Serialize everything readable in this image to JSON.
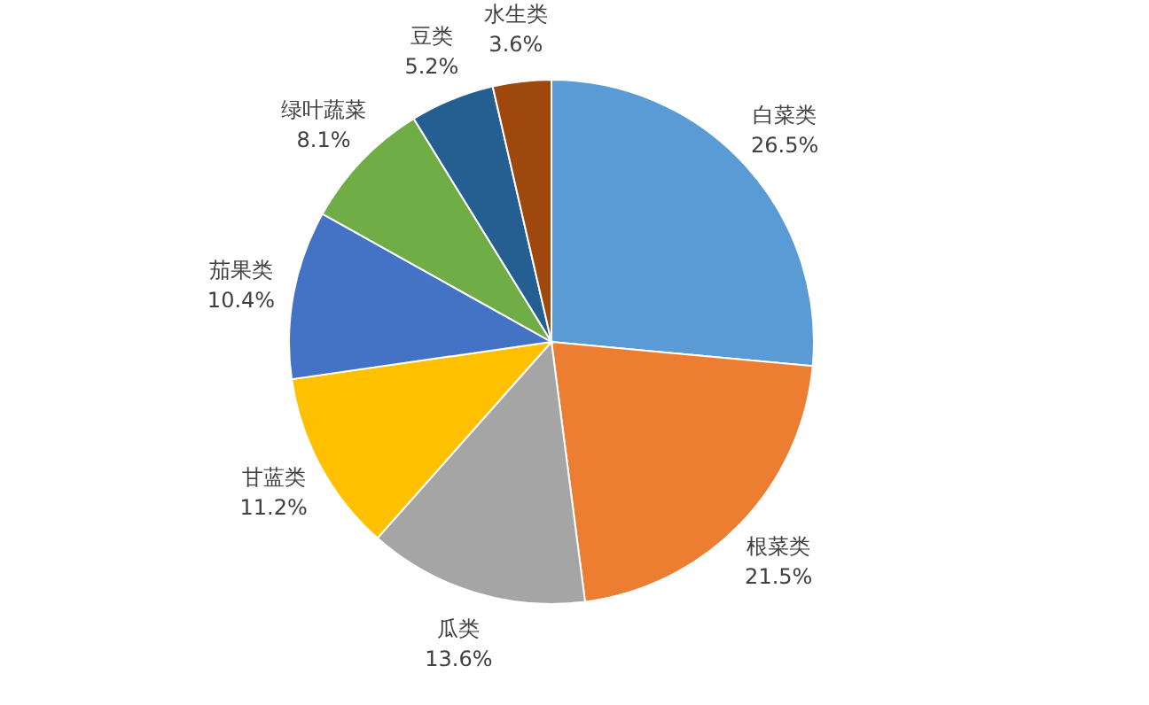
{
  "chart_data": {
    "type": "pie",
    "categories": [
      "白菜类",
      "根菜类",
      "瓜类",
      "甘蓝类",
      "茄果类",
      "绿叶蔬菜",
      "豆类",
      "水生类"
    ],
    "values": [
      26.5,
      21.5,
      13.6,
      11.2,
      10.4,
      8.1,
      5.2,
      3.6
    ],
    "value_labels": [
      "26.5%",
      "21.5%",
      "13.6%",
      "11.2%",
      "10.4%",
      "8.1%",
      "5.2%",
      "3.6%"
    ],
    "colors": [
      "#5b9bd5",
      "#ed7d31",
      "#a5a5a5",
      "#ffc000",
      "#4472c4",
      "#70ad47",
      "#255e91",
      "#9e480e"
    ]
  }
}
